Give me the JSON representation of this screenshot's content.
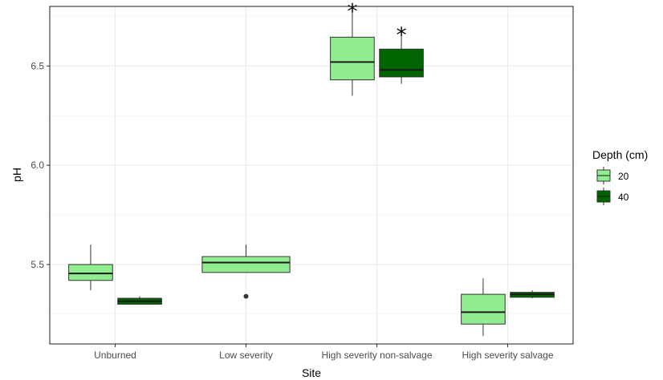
{
  "chart_data": {
    "type": "boxplot",
    "xlabel": "Site",
    "ylabel": "pH",
    "ylim": [
      5.1,
      6.8
    ],
    "yticks": [
      5.5,
      6.0,
      6.5
    ],
    "ytick_labels": [
      "5.5",
      "6.0",
      "6.5"
    ],
    "categories": [
      "Unburned",
      "Low severity",
      "High severity non-salvage",
      "High severity salvage"
    ],
    "grid": true,
    "legend": {
      "title": "Depth (cm)",
      "placement": "right",
      "entries": [
        {
          "label": "20",
          "fill": "#90ee90"
        },
        {
          "label": "40",
          "fill": "#006400"
        }
      ]
    },
    "boxes": [
      {
        "category": "Unburned",
        "depth": "20",
        "whisker_low": 5.37,
        "q1": 5.42,
        "median": 5.455,
        "q3": 5.5,
        "whisker_high": 5.6,
        "outliers": [],
        "annotation": ""
      },
      {
        "category": "Unburned",
        "depth": "40",
        "whisker_low": 5.3,
        "q1": 5.3,
        "median": 5.315,
        "q3": 5.33,
        "whisker_high": 5.34,
        "outliers": [],
        "annotation": ""
      },
      {
        "category": "Low severity",
        "depth": "20",
        "whisker_low": 5.46,
        "q1": 5.46,
        "median": 5.51,
        "q3": 5.54,
        "whisker_high": 5.6,
        "outliers": [
          5.34
        ],
        "annotation": ""
      },
      {
        "category": "High severity non-salvage",
        "depth": "20",
        "whisker_low": 6.35,
        "q1": 6.43,
        "median": 6.52,
        "q3": 6.645,
        "whisker_high": 6.78,
        "outliers": [],
        "annotation": "*"
      },
      {
        "category": "High severity non-salvage",
        "depth": "40",
        "whisker_low": 6.41,
        "q1": 6.445,
        "median": 6.48,
        "q3": 6.585,
        "whisker_high": 6.66,
        "outliers": [],
        "annotation": "*"
      },
      {
        "category": "High severity salvage",
        "depth": "20",
        "whisker_low": 5.14,
        "q1": 5.2,
        "median": 5.26,
        "q3": 5.35,
        "whisker_high": 5.43,
        "outliers": [],
        "annotation": ""
      },
      {
        "category": "High severity salvage",
        "depth": "40",
        "whisker_low": 5.33,
        "q1": 5.335,
        "median": 5.35,
        "q3": 5.36,
        "whisker_high": 5.37,
        "outliers": [],
        "annotation": ""
      }
    ]
  }
}
